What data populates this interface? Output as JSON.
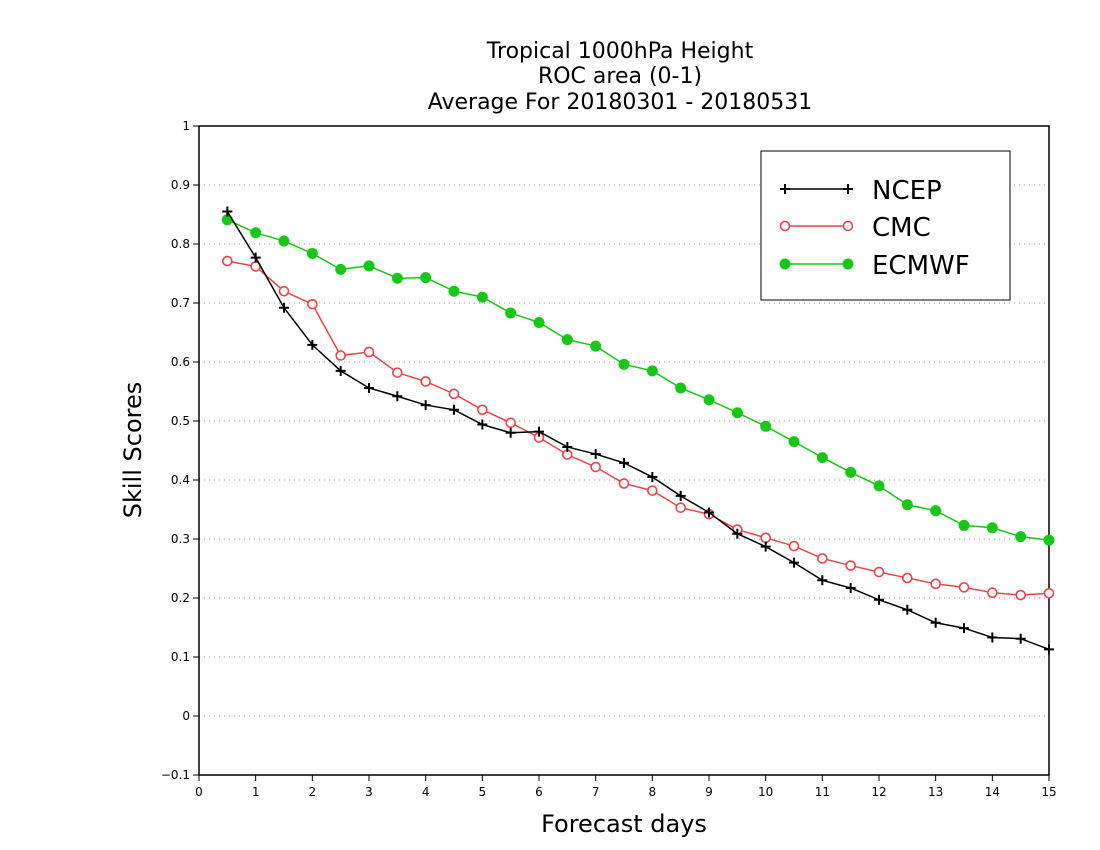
{
  "chart_data": {
    "type": "line",
    "title_lines": [
      "Tropical 1000hPa Height",
      "ROC area (0-1)",
      "Average For 20180301 - 20180531"
    ],
    "xlabel": "Forecast days",
    "ylabel": "Skill Scores",
    "xlim": [
      0,
      15
    ],
    "ylim": [
      -0.1,
      1
    ],
    "xticks": [
      0,
      1,
      2,
      3,
      4,
      5,
      6,
      7,
      8,
      9,
      10,
      11,
      12,
      13,
      14,
      15
    ],
    "yticks": [
      -0.1,
      0,
      0.1,
      0.2,
      0.3,
      0.4,
      0.5,
      0.6,
      0.7,
      0.8,
      0.9,
      1
    ],
    "ytick_labels": [
      "−0.1",
      "0",
      "0.1",
      "0.2",
      "0.3",
      "0.4",
      "0.5",
      "0.6",
      "0.7",
      "0.8",
      "0.9",
      "1"
    ],
    "grid": "horizontal dotted",
    "legend_position": "top-right",
    "x": [
      0.5,
      1,
      1.5,
      2,
      2.5,
      3,
      3.5,
      4,
      4.5,
      5,
      5.5,
      6,
      6.5,
      7,
      7.5,
      8,
      8.5,
      9,
      9.5,
      10,
      10.5,
      11,
      11.5,
      12,
      12.5,
      13,
      13.5,
      14,
      14.5,
      15
    ],
    "series": [
      {
        "name": "NCEP",
        "color": "#000000",
        "marker": "plus",
        "values": [
          0.855,
          0.777,
          0.692,
          0.629,
          0.585,
          0.556,
          0.542,
          0.527,
          0.519,
          0.494,
          0.48,
          0.482,
          0.456,
          0.444,
          0.429,
          0.405,
          0.373,
          0.345,
          0.309,
          0.287,
          0.26,
          0.23,
          0.217,
          0.197,
          0.18,
          0.158,
          0.149,
          0.133,
          0.131,
          0.113
        ]
      },
      {
        "name": "CMC",
        "color": "#e8454a",
        "marker": "open-circle",
        "values": [
          0.771,
          0.762,
          0.72,
          0.698,
          0.611,
          0.617,
          0.582,
          0.567,
          0.546,
          0.519,
          0.497,
          0.472,
          0.443,
          0.422,
          0.394,
          0.382,
          0.353,
          0.342,
          0.316,
          0.302,
          0.288,
          0.267,
          0.255,
          0.244,
          0.234,
          0.224,
          0.218,
          0.209,
          0.205,
          0.208
        ]
      },
      {
        "name": "ECMWF",
        "color": "#16c716",
        "marker": "filled-circle",
        "values": [
          0.841,
          0.819,
          0.805,
          0.784,
          0.757,
          0.763,
          0.742,
          0.743,
          0.72,
          0.71,
          0.683,
          0.667,
          0.638,
          0.627,
          0.596,
          0.585,
          0.556,
          0.536,
          0.514,
          0.491,
          0.465,
          0.438,
          0.413,
          0.39,
          0.358,
          0.348,
          0.323,
          0.319,
          0.304,
          0.298
        ]
      }
    ]
  }
}
